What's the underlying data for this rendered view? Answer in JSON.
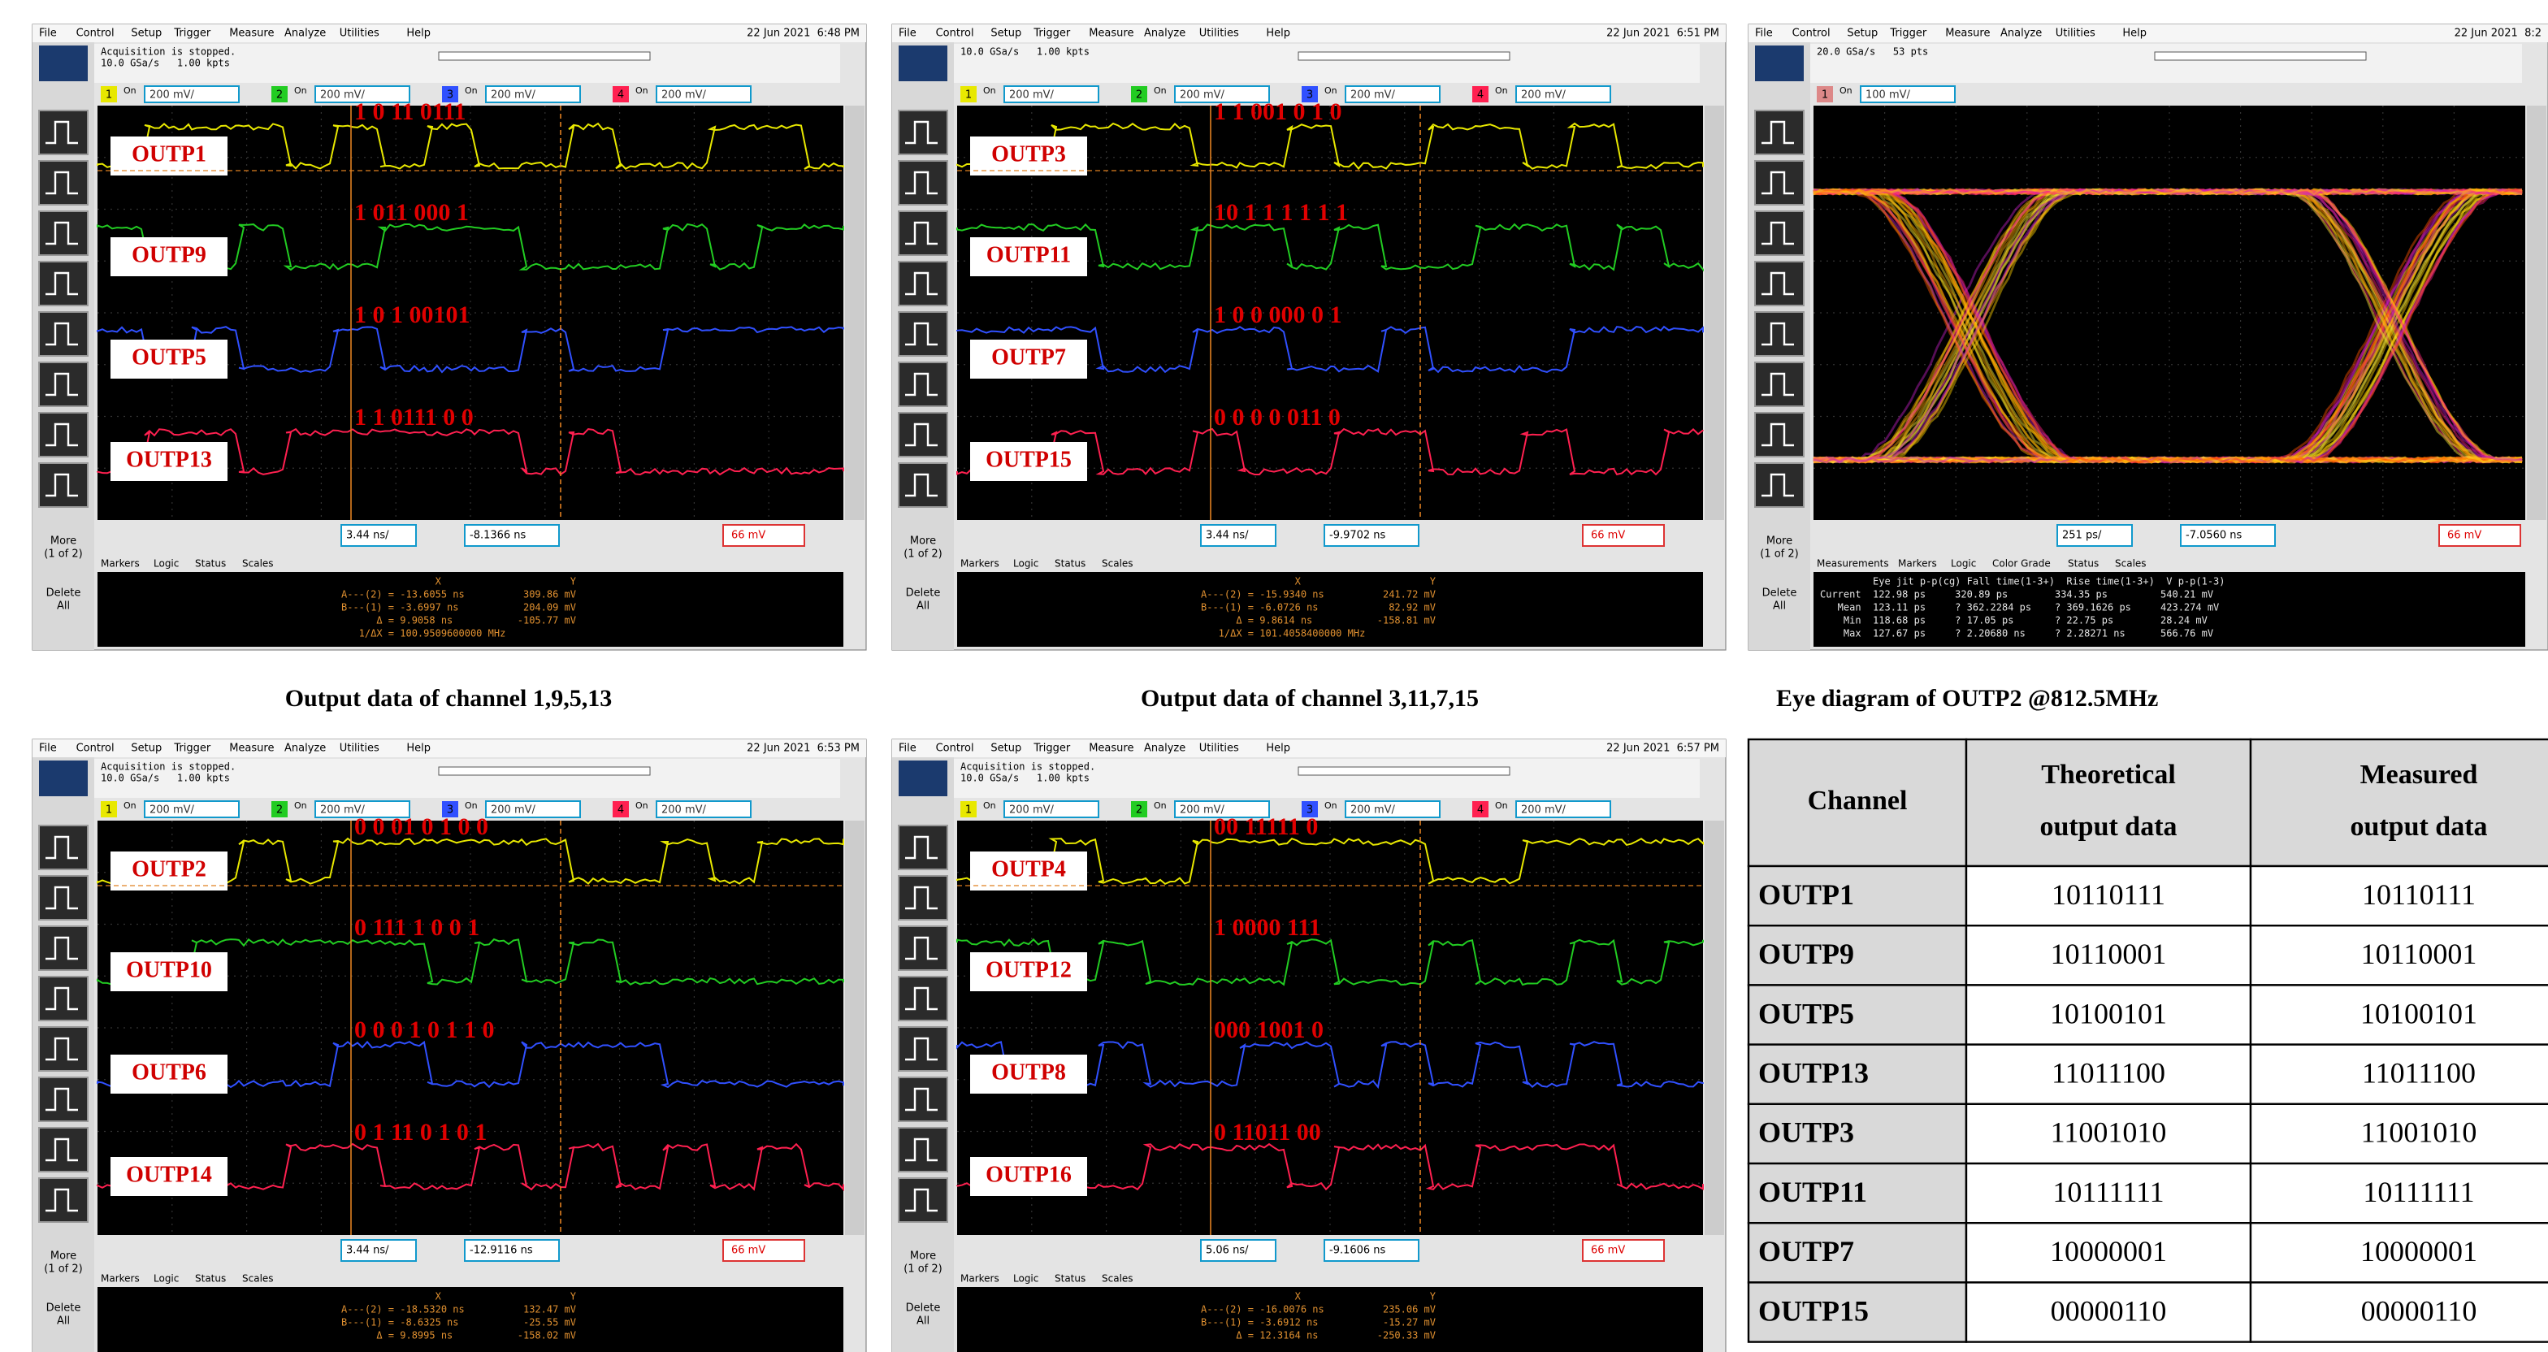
{
  "menu": [
    "File",
    "Control",
    "Setup",
    "Trigger",
    "Measure",
    "Analyze",
    "Utilities",
    "Help"
  ],
  "chnums": [
    "1",
    "2",
    "3",
    "4"
  ],
  "on": "On",
  "side": [
    "More",
    "(1 of 2)",
    "Delete",
    "All"
  ],
  "panels": [
    {
      "date": "22 Jun 2021  6:48 PM",
      "status": [
        "Acquisition is stopped.",
        "10.0 GSa/s   1.00 kpts"
      ],
      "channels": [
        "200 mV/",
        "200 mV/",
        "200 mV/",
        "200 mV/"
      ],
      "scale": "3.44 ns/",
      "delay": "-8.1366 ns",
      "trigger": "66 mV",
      "tabs": [
        "Markers",
        "Logic",
        "Status",
        "Scales"
      ],
      "labels": [
        "OUTP1",
        "OUTP9",
        "OUTP5",
        "OUTP13"
      ],
      "bits": [
        "1 0 11 0111",
        "1 011 000 1",
        "1 0 1 00101",
        "1 1 0111 0 0"
      ],
      "readout": [
        "                X                      Y",
        "A---(2) = -13.6055 ns          309.86 mV",
        "B---(1) = -3.6997 ns           204.09 mV",
        "      Δ = 9.9058 ns           -105.77 mV",
        "   1/ΔX = 100.9509600000 MHz"
      ]
    },
    {
      "date": "22 Jun 2021  6:51 PM",
      "status": [
        "10.0 GSa/s   1.00 kpts"
      ],
      "channels": [
        "200 mV/",
        "200 mV/",
        "200 mV/",
        "200 mV/"
      ],
      "scale": "3.44 ns/",
      "delay": "-9.9702 ns",
      "trigger": "66 mV",
      "tabs": [
        "Markers",
        "Logic",
        "Status",
        "Scales"
      ],
      "labels": [
        "OUTP3",
        "OUTP11",
        "OUTP7",
        "OUTP15"
      ],
      "bits": [
        "1 1 001 0 1 0",
        "10 1 1 1 1 1 1",
        "1 0 0 000 0 1",
        "0 0 0 0 011 0"
      ],
      "readout": [
        "                X                      Y",
        "A---(2) = -15.9340 ns          241.72 mV",
        "B---(1) = -6.0726 ns            82.92 mV",
        "      Δ = 9.8614 ns           -158.81 mV",
        "   1/ΔX = 101.4058400000 MHz"
      ]
    },
    {
      "date": "22 Jun 2021  8:2",
      "status": [
        "20.0 GSa/s   53 pts"
      ],
      "channels": [
        "100 mV/"
      ],
      "scale": "251 ps/",
      "delay": "-7.0560 ns",
      "trigger": "66 mV",
      "tabs": [
        "Measurements",
        "Markers",
        "Logic",
        "Color Grade",
        "Status",
        "Scales"
      ],
      "readout": [
        "         Eye jit p-p(cg) Fall time(1-3+)  Rise time(1-3+)  V p-p(1-3)",
        "Current  122.98 ps     320.89 ps        334.35 ps         540.21 mV",
        "   Mean  123.11 ps     ? 362.2284 ps    ? 369.1626 ps     423.274 mV",
        "    Min  118.68 ps     ? 17.05 ps       ? 22.75 ps        28.24 mV",
        "    Max  127.67 ps     ? 2.20680 ns     ? 2.28271 ns      566.76 mV"
      ]
    },
    {
      "date": "22 Jun 2021  6:53 PM",
      "status": [
        "Acquisition is stopped.",
        "10.0 GSa/s   1.00 kpts"
      ],
      "channels": [
        "200 mV/",
        "200 mV/",
        "200 mV/",
        "200 mV/"
      ],
      "scale": "3.44 ns/",
      "delay": "-12.9116 ns",
      "trigger": "66 mV",
      "tabs": [
        "Markers",
        "Logic",
        "Status",
        "Scales"
      ],
      "labels": [
        "OUTP2",
        "OUTP10",
        "OUTP6",
        "OUTP14"
      ],
      "bits": [
        "0 0 01 0 1 0 0",
        "0 111 1 0 0 1",
        "0 0 0 1 0 1 1 0",
        "0 1 11 0 1 0 1"
      ],
      "readout": [
        "                X                      Y",
        "A---(2) = -18.5320 ns          132.47 mV",
        "B---(1) = -8.6325 ns           -25.55 mV",
        "      Δ = 9.8995 ns           -158.02 mV"
      ]
    },
    {
      "date": "22 Jun 2021  6:57 PM",
      "status": [
        "Acquisition is stopped.",
        "10.0 GSa/s   1.00 kpts"
      ],
      "channels": [
        "200 mV/",
        "200 mV/",
        "200 mV/",
        "200 mV/"
      ],
      "scale": "5.06 ns/",
      "delay": "-9.1606 ns",
      "trigger": "66 mV",
      "tabs": [
        "Markers",
        "Logic",
        "Status",
        "Scales"
      ],
      "labels": [
        "OUTP4",
        "OUTP12",
        "OUTP8",
        "OUTP16"
      ],
      "bits": [
        "00 11111 0",
        "1 0000 111",
        "000 1001 0",
        "0 11011 00"
      ],
      "readout": [
        "                X                      Y",
        "A---(2) = -16.0076 ns          235.06 mV",
        "B---(1) = -3.6912 ns           -15.27 mV",
        "      Δ = 12.3164 ns          -250.33 mV"
      ]
    }
  ],
  "captions": [
    "Output data of channel 1,9,5,13",
    "Output data of channel 3,11,7,15",
    "Eye diagram of OUTP2 @812.5MHz"
  ],
  "table": {
    "header": [
      [
        "Channel"
      ],
      [
        "Theoretical",
        "output data"
      ],
      [
        "Measured",
        "output data"
      ]
    ],
    "rows": [
      [
        "OUTP1",
        "10110111",
        "10110111"
      ],
      [
        "OUTP9",
        "10110001",
        "10110001"
      ],
      [
        "OUTP5",
        "10100101",
        "10100101"
      ],
      [
        "OUTP13",
        "11011100",
        "11011100"
      ],
      [
        "OUTP3",
        "11001010",
        "11001010"
      ],
      [
        "OUTP11",
        "10111111",
        "10111111"
      ],
      [
        "OUTP7",
        "10000001",
        "10000001"
      ],
      [
        "OUTP15",
        "00000110",
        "00000110"
      ]
    ]
  }
}
